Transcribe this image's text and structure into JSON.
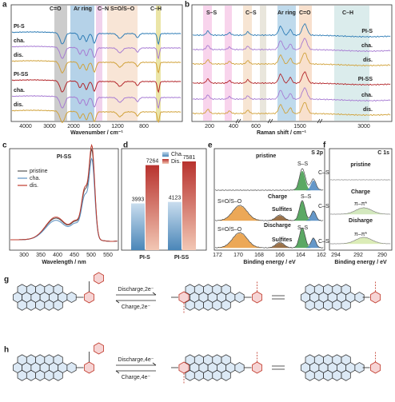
{
  "panels": {
    "a": {
      "label": "a",
      "bands": [
        "C=O",
        "Ar ring",
        "C–N",
        "S=O/S–O",
        "C–H"
      ],
      "traces": [
        "PI-S",
        "cha.",
        "dis.",
        "PI-SS",
        "cha.",
        "dis."
      ],
      "xticks": [
        "4000",
        "3000",
        "2000",
        "1600",
        "1200",
        "800"
      ],
      "xlabel": "Wavenumber / cm⁻¹"
    },
    "b": {
      "label": "b",
      "bands": [
        "S–S",
        "C–S",
        "Ar ring",
        "C=O",
        "C–H"
      ],
      "traces": [
        "PI-S",
        "cha.",
        "dis.",
        "PI-SS",
        "cha.",
        "dis."
      ],
      "xticks": [
        "200",
        "400",
        "600",
        "1500",
        "3000"
      ],
      "xlabel": "Raman shift / cm⁻¹"
    },
    "c": {
      "label": "c",
      "title": "PI-SS",
      "legend": [
        "pristine",
        "cha.",
        "dis."
      ],
      "xticks": [
        "300",
        "350",
        "400",
        "450",
        "500",
        "550"
      ],
      "xlabel": "Wavelength / nm"
    },
    "d": {
      "label": "d"
    },
    "e": {
      "label": "e",
      "core": "S 2p",
      "texts": [
        "pristine",
        "S–S",
        "C–S",
        "Charge",
        "S=O/S–O",
        "Sulfites",
        "S–S",
        "C–S",
        "Discharge",
        "S=O/S–O",
        "Sulfites",
        "S–S",
        "C–S"
      ],
      "xticks": [
        "172",
        "170",
        "168",
        "166",
        "164",
        "162"
      ],
      "xlabel": "Binding energy / eV"
    },
    "f": {
      "label": "f",
      "core": "C 1s",
      "texts": [
        "pristine",
        "Charge",
        "π–π*",
        "Disharge",
        "π–π*"
      ],
      "xticks": [
        "294",
        "292",
        "290"
      ],
      "xlabel": "Binding energy / eV"
    },
    "g": {
      "label": "g",
      "forward": "Discharge,2e⁻",
      "backward": "Charge,2e⁻"
    },
    "h": {
      "label": "h",
      "forward": "Discharge,4e⁻",
      "backward": "Charge,4e⁻"
    }
  },
  "chart_data": {
    "type": "bar",
    "categories": [
      "PI-S",
      "PI-SS"
    ],
    "series": [
      {
        "name": "Cha.",
        "color": "#5b9bd5",
        "values": [
          3993,
          4123
        ]
      },
      {
        "name": "Dis.",
        "color": "#c0504d",
        "values": [
          7264,
          7581
        ]
      }
    ]
  }
}
